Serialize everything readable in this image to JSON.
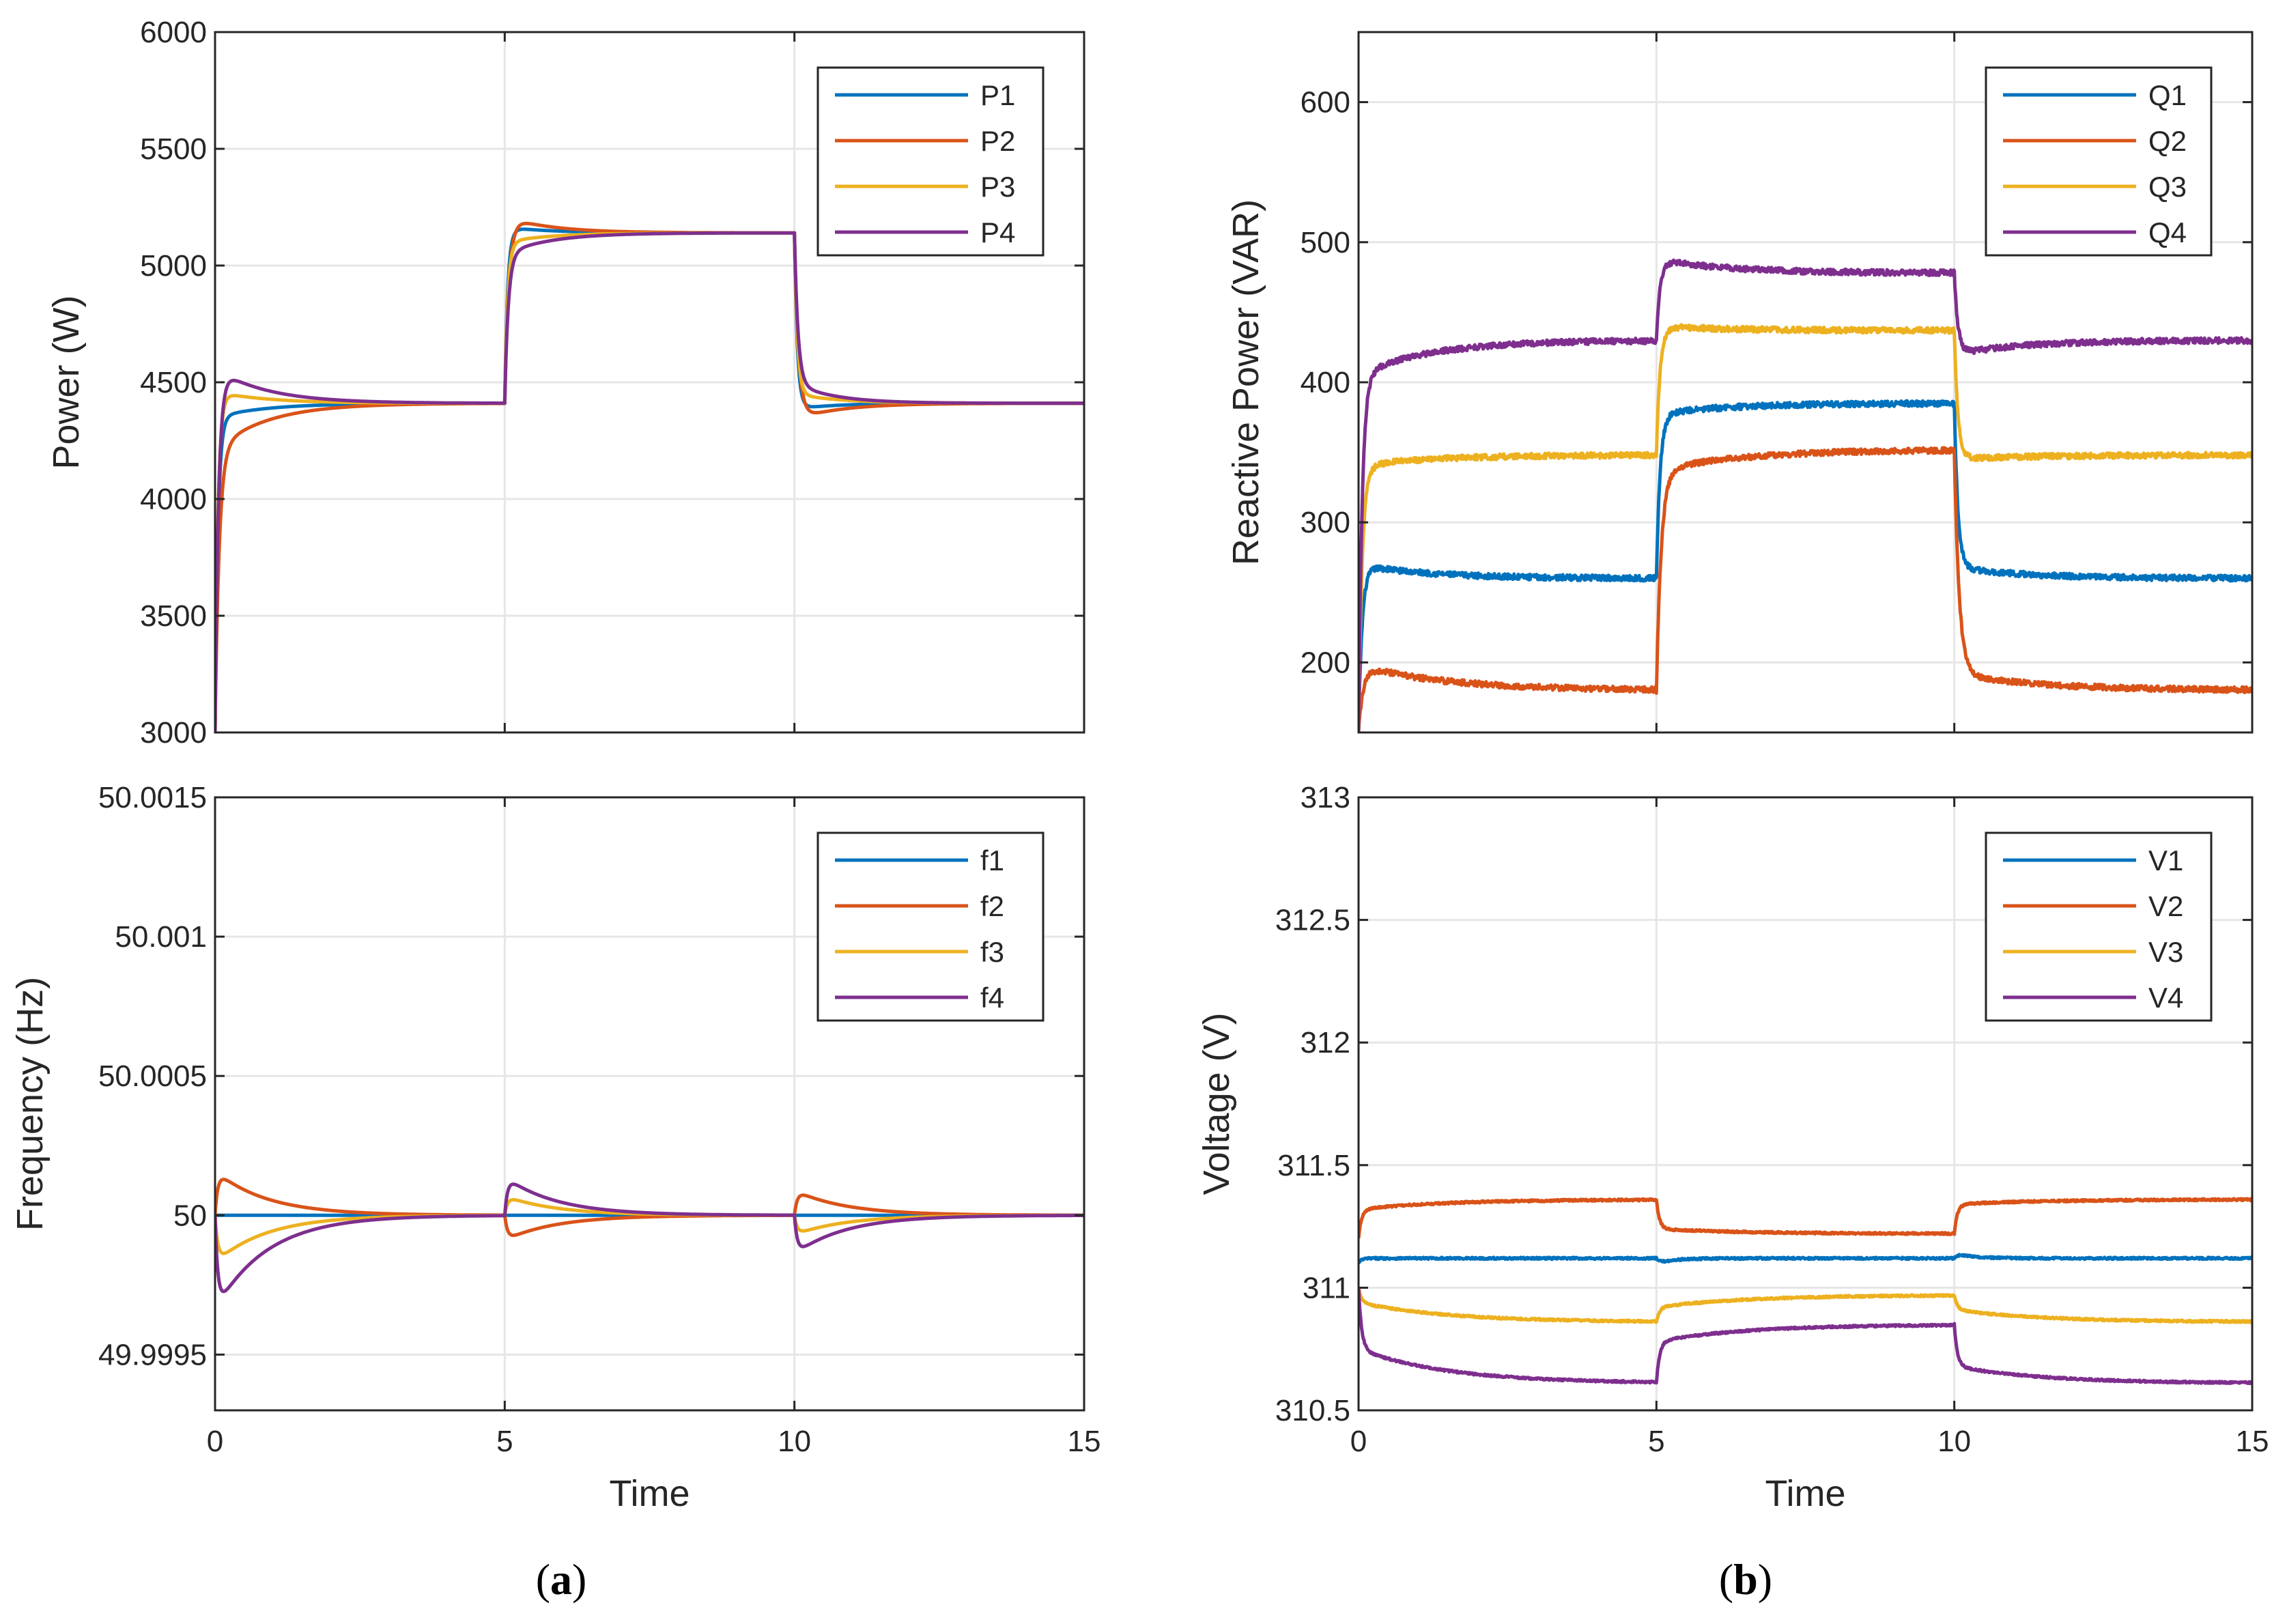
{
  "colors": {
    "series": [
      "#0072BD",
      "#D95319",
      "#EDB120",
      "#7E2F8E"
    ],
    "grid": "#e6e6e6",
    "axis": "#262626"
  },
  "captions": {
    "a": {
      "open": "(",
      "letter": "a",
      "close": ")"
    },
    "b": {
      "open": "(",
      "letter": "b",
      "close": ")"
    }
  },
  "chart_data": [
    {
      "id": "power",
      "type": "line",
      "xlabel": "",
      "ylabel": "Power (W)",
      "xlim": [
        0,
        15
      ],
      "ylim": [
        3000,
        6000
      ],
      "xticks": [
        0,
        5,
        10,
        15
      ],
      "xtick_labels": [],
      "yticks": [
        3000,
        3500,
        4000,
        4500,
        5000,
        5500,
        6000
      ],
      "ytick_labels": [
        "3000",
        "3500",
        "4000",
        "4500",
        "5000",
        "5500",
        "6000"
      ],
      "grid": true,
      "legend_position": "top-right",
      "events": [
        5,
        10
      ],
      "noise": 0,
      "series": [
        {
          "name": "P1",
          "start": 3000,
          "levels": [
            4410,
            5140,
            4410
          ],
          "tau_fast": 0.05,
          "overshoot": [
            -40,
            25,
            -25
          ],
          "tau_slow": [
            0.9,
            0.8,
            0.7
          ],
          "init_overshoot": -60
        },
        {
          "name": "P2",
          "start": 3000,
          "levels": [
            4410,
            5140,
            4410
          ],
          "tau_fast": 0.07,
          "overshoot": [
            -180,
            70,
            -70
          ],
          "tau_slow": [
            0.9,
            0.8,
            0.8
          ],
          "init_overshoot": -200
        },
        {
          "name": "P3",
          "start": 3000,
          "levels": [
            4410,
            5140,
            4410
          ],
          "tau_fast": 0.05,
          "overshoot": [
            50,
            -40,
            40
          ],
          "tau_slow": [
            0.9,
            0.8,
            0.8
          ],
          "init_overshoot": 50
        },
        {
          "name": "P4",
          "start": 3000,
          "levels": [
            4410,
            5140,
            4410
          ],
          "tau_fast": 0.06,
          "overshoot": [
            150,
            -90,
            85
          ],
          "tau_slow": [
            0.9,
            0.8,
            0.7
          ],
          "init_overshoot": 150
        }
      ]
    },
    {
      "id": "reactive",
      "type": "line",
      "xlabel": "",
      "ylabel": "Reactive Power (VAR)",
      "xlim": [
        0,
        15
      ],
      "ylim": [
        150,
        650
      ],
      "xticks": [
        0,
        5,
        10,
        15
      ],
      "xtick_labels": [],
      "yticks": [
        200,
        300,
        400,
        500,
        600
      ],
      "ytick_labels": [
        "200",
        "300",
        "400",
        "500",
        "600"
      ],
      "grid": true,
      "legend_position": "top-right",
      "events": [
        5,
        10
      ],
      "noise": 2,
      "series": [
        {
          "name": "Q1",
          "start": 150,
          "levels": [
            260,
            385,
            260
          ],
          "tau_fast": 0.06,
          "overshoot": [
            10,
            -8,
            8
          ],
          "tau_slow": [
            1.2,
            1.2,
            1.2
          ],
          "init_overshoot": 10
        },
        {
          "name": "Q2",
          "start": 150,
          "levels": [
            180,
            352,
            180
          ],
          "tau_fast": 0.08,
          "overshoot": [
            18,
            -15,
            12
          ],
          "tau_slow": [
            1.5,
            1.5,
            1.5
          ],
          "init_overshoot": 18
        },
        {
          "name": "Q3",
          "start": 150,
          "levels": [
            348,
            437,
            348
          ],
          "tau_fast": 0.06,
          "overshoot": [
            -8,
            3,
            -3
          ],
          "tau_slow": [
            1.2,
            1.2,
            1.2
          ],
          "init_overshoot": -8
        },
        {
          "name": "Q4",
          "start": 150,
          "levels": [
            430,
            478,
            430
          ],
          "tau_fast": 0.06,
          "overshoot": [
            -25,
            10,
            -10
          ],
          "tau_slow": [
            1.2,
            1.2,
            1.2
          ],
          "init_overshoot": -25
        }
      ]
    },
    {
      "id": "frequency",
      "type": "line",
      "xlabel": "Time",
      "ylabel": "Frequency (Hz)",
      "xlim": [
        0,
        15
      ],
      "ylim": [
        49.9993,
        50.0015
      ],
      "xticks": [
        0,
        5,
        10,
        15
      ],
      "xtick_labels": [
        "0",
        "5",
        "10",
        "15"
      ],
      "yticks": [
        49.9995,
        50,
        50.0005,
        50.001,
        50.0015
      ],
      "ytick_labels": [
        "49.9995",
        "50",
        "50.0005",
        "50.001",
        "50.0015"
      ],
      "grid": true,
      "legend_position": "top-right",
      "events": [
        5,
        10
      ],
      "noise": 0,
      "series": [
        {
          "name": "f1",
          "base": 50,
          "bumps": [
            [
              0,
              0
            ],
            [
              5,
              0
            ],
            [
              10,
              0
            ]
          ],
          "tau_rise": 0.05,
          "tau_decay": 0.9
        },
        {
          "name": "f2",
          "base": 50,
          "bumps": [
            [
              0,
              0.00016
            ],
            [
              5,
              -9e-05
            ],
            [
              10,
              9e-05
            ]
          ],
          "tau_rise": 0.05,
          "tau_decay": 0.9
        },
        {
          "name": "f3",
          "base": 50,
          "bumps": [
            [
              0,
              -0.00017
            ],
            [
              5,
              7e-05
            ],
            [
              10,
              -7e-05
            ]
          ],
          "tau_rise": 0.05,
          "tau_decay": 0.9
        },
        {
          "name": "f4",
          "base": 50,
          "bumps": [
            [
              0,
              -0.00034
            ],
            [
              5,
              0.00014
            ],
            [
              10,
              -0.00014
            ]
          ],
          "tau_rise": 0.05,
          "tau_decay": 0.9
        }
      ]
    },
    {
      "id": "voltage",
      "type": "line",
      "xlabel": "Time",
      "ylabel": "Voltage (V)",
      "xlim": [
        0,
        15
      ],
      "ylim": [
        310.5,
        313
      ],
      "xticks": [
        0,
        5,
        10,
        15
      ],
      "xtick_labels": [
        "0",
        "5",
        "10",
        "15"
      ],
      "yticks": [
        310.5,
        311,
        311.5,
        312,
        312.5,
        313
      ],
      "ytick_labels": [
        "310.5",
        "311",
        "311.5",
        "312",
        "312.5",
        "313"
      ],
      "grid": true,
      "legend_position": "top-right",
      "events": [
        5,
        10
      ],
      "noise": 0.004,
      "series": [
        {
          "name": "V1",
          "start": 311.1,
          "levels": [
            311.12,
            311.12,
            311.12
          ],
          "tau_fast": 0.05,
          "overshoot": [
            0,
            -0.02,
            0.02
          ],
          "tau_slow": [
            0.5,
            0.3,
            0.3
          ],
          "init_overshoot": 0
        },
        {
          "name": "V2",
          "start": 311.2,
          "levels": [
            311.36,
            311.22,
            311.36
          ],
          "tau_fast": 0.05,
          "overshoot": [
            -0.04,
            0.02,
            -0.02
          ],
          "tau_slow": [
            1.5,
            1.5,
            1.5
          ],
          "init_overshoot": -0.04
        },
        {
          "name": "V3",
          "start": 311.0,
          "levels": [
            310.86,
            310.97,
            310.86
          ],
          "tau_fast": 0.05,
          "overshoot": [
            0.08,
            -0.05,
            0.05
          ],
          "tau_slow": [
            1.5,
            1.5,
            1.5
          ],
          "init_overshoot": 0.08
        },
        {
          "name": "V4",
          "start": 311.0,
          "levels": [
            310.61,
            310.85,
            310.61
          ],
          "tau_fast": 0.05,
          "overshoot": [
            0.14,
            -0.07,
            0.07
          ],
          "tau_slow": [
            1.5,
            1.5,
            1.5
          ],
          "init_overshoot": 0.14
        }
      ]
    }
  ]
}
